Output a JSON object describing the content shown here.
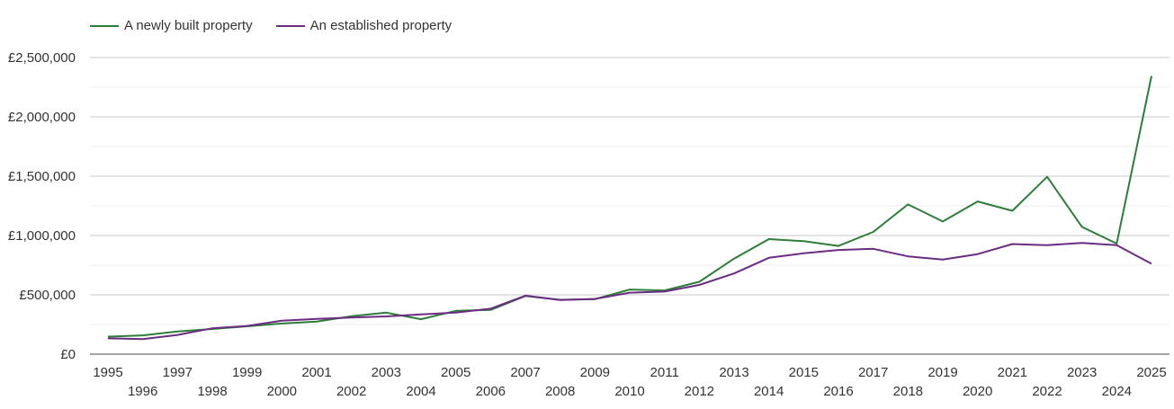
{
  "chart_data": {
    "type": "line",
    "title": "",
    "xlabel": "",
    "ylabel": "",
    "ylim": [
      0,
      2500000
    ],
    "yticks": [
      0,
      500000,
      1000000,
      1500000,
      2000000,
      2500000
    ],
    "ytick_labels": [
      "£0",
      "£500,000",
      "£1,000,000",
      "£1,500,000",
      "£2,000,000",
      "£2,500,000"
    ],
    "x": [
      "1995",
      "1996",
      "1997",
      "1998",
      "1999",
      "2000",
      "2001",
      "2002",
      "2003",
      "2004",
      "2005",
      "2006",
      "2007",
      "2008",
      "2009",
      "2010",
      "2011",
      "2012",
      "2013",
      "2014",
      "2015",
      "2016",
      "2017",
      "2018",
      "2019",
      "2020",
      "2021",
      "2022",
      "2023",
      "2024",
      "2025"
    ],
    "grid": true,
    "legend_position": "top-left",
    "series": [
      {
        "name": "A newly built property",
        "color": "#2e7d3a",
        "values": [
          148000,
          158000,
          192000,
          212000,
          235000,
          258000,
          275000,
          320000,
          350000,
          295000,
          365000,
          373000,
          490000,
          458000,
          463000,
          545000,
          537000,
          610000,
          805000,
          970000,
          952000,
          912000,
          1030000,
          1262000,
          1118000,
          1287000,
          1208000,
          1495000,
          1073000,
          932000,
          2345000
        ]
      },
      {
        "name": "An established property",
        "color": "#6b2c82",
        "values": [
          133000,
          127000,
          162000,
          218000,
          238000,
          282000,
          297000,
          308000,
          318000,
          335000,
          350000,
          383000,
          493000,
          456000,
          466000,
          518000,
          527000,
          583000,
          680000,
          812000,
          850000,
          878000,
          888000,
          824000,
          797000,
          843000,
          928000,
          918000,
          938000,
          918000,
          762000
        ]
      }
    ]
  }
}
